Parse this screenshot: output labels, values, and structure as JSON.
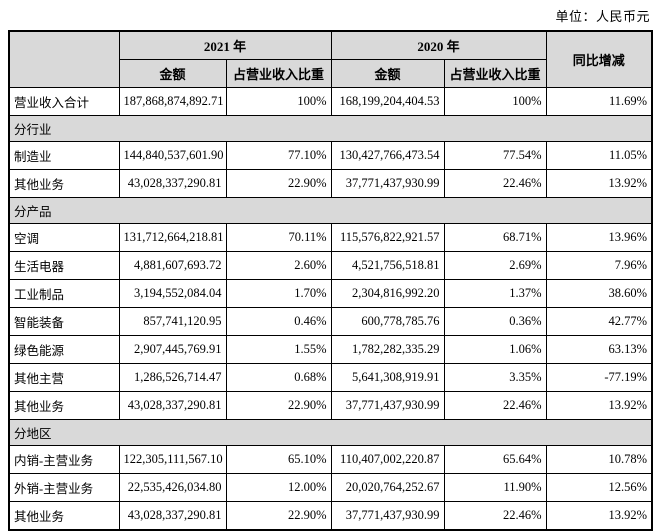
{
  "page": {
    "unit_label": "单位：人民币元"
  },
  "colors": {
    "header_bg": "#d9d9d9",
    "section_bg": "#d9d9d9",
    "border": "#000000",
    "text": "#000000",
    "page_bg": "#ffffff"
  },
  "table": {
    "col_headers": {
      "year_2021": "2021 年",
      "year_2020": "2020 年",
      "amount_2021": "金额",
      "ratio_2021": "占营业收入比重",
      "amount_2020": "金额",
      "ratio_2020": "占营业收入比重",
      "yoy": "同比增减"
    },
    "rows": [
      {
        "type": "data",
        "label": "营业收入合计",
        "a2021": "187,868,874,892.71",
        "r2021": "100%",
        "a2020": "168,199,204,404.53",
        "r2020": "100%",
        "yoy": "11.69%"
      },
      {
        "type": "section",
        "label": "分行业"
      },
      {
        "type": "data",
        "label": "制造业",
        "a2021": "144,840,537,601.90",
        "r2021": "77.10%",
        "a2020": "130,427,766,473.54",
        "r2020": "77.54%",
        "yoy": "11.05%"
      },
      {
        "type": "data",
        "label": "其他业务",
        "a2021": "43,028,337,290.81",
        "r2021": "22.90%",
        "a2020": "37,771,437,930.99",
        "r2020": "22.46%",
        "yoy": "13.92%"
      },
      {
        "type": "section",
        "label": "分产品"
      },
      {
        "type": "data",
        "label": "空调",
        "a2021": "131,712,664,218.81",
        "r2021": "70.11%",
        "a2020": "115,576,822,921.57",
        "r2020": "68.71%",
        "yoy": "13.96%"
      },
      {
        "type": "data",
        "label": "生活电器",
        "a2021": "4,881,607,693.72",
        "r2021": "2.60%",
        "a2020": "4,521,756,518.81",
        "r2020": "2.69%",
        "yoy": "7.96%"
      },
      {
        "type": "data",
        "label": "工业制品",
        "a2021": "3,194,552,084.04",
        "r2021": "1.70%",
        "a2020": "2,304,816,992.20",
        "r2020": "1.37%",
        "yoy": "38.60%"
      },
      {
        "type": "data",
        "label": "智能装备",
        "a2021": "857,741,120.95",
        "r2021": "0.46%",
        "a2020": "600,778,785.76",
        "r2020": "0.36%",
        "yoy": "42.77%"
      },
      {
        "type": "data",
        "label": "绿色能源",
        "a2021": "2,907,445,769.91",
        "r2021": "1.55%",
        "a2020": "1,782,282,335.29",
        "r2020": "1.06%",
        "yoy": "63.13%"
      },
      {
        "type": "data",
        "label": "其他主营",
        "a2021": "1,286,526,714.47",
        "r2021": "0.68%",
        "a2020": "5,641,308,919.91",
        "r2020": "3.35%",
        "yoy": "-77.19%"
      },
      {
        "type": "data",
        "label": "其他业务",
        "a2021": "43,028,337,290.81",
        "r2021": "22.90%",
        "a2020": "37,771,437,930.99",
        "r2020": "22.46%",
        "yoy": "13.92%"
      },
      {
        "type": "section",
        "label": "分地区"
      },
      {
        "type": "data",
        "label": "内销-主营业务",
        "a2021": "122,305,111,567.10",
        "r2021": "65.10%",
        "a2020": "110,407,002,220.87",
        "r2020": "65.64%",
        "yoy": "10.78%"
      },
      {
        "type": "data",
        "label": "外销-主营业务",
        "a2021": "22,535,426,034.80",
        "r2021": "12.00%",
        "a2020": "20,020,764,252.67",
        "r2020": "11.90%",
        "yoy": "12.56%"
      },
      {
        "type": "data",
        "label": "其他业务",
        "a2021": "43,028,337,290.81",
        "r2021": "22.90%",
        "a2020": "37,771,437,930.99",
        "r2020": "22.46%",
        "yoy": "13.92%"
      }
    ]
  }
}
